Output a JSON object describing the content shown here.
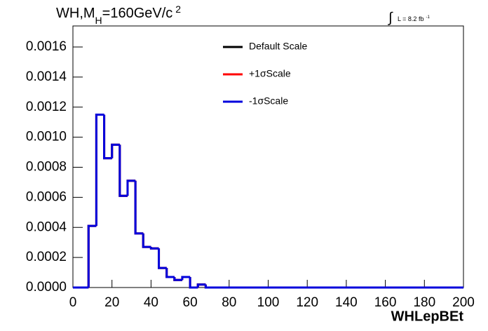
{
  "chart_data": {
    "type": "histogram",
    "title_parts": [
      "WH,M",
      "H",
      "=160GeV/c",
      "2"
    ],
    "annotation_parts": [
      "∫",
      "L = 8.2 fb",
      "-1"
    ],
    "x_label": "WHLepBEt",
    "bins": [
      0,
      4,
      8,
      12,
      16,
      20,
      24,
      28,
      32,
      36,
      40,
      44,
      48,
      52,
      56,
      60,
      64,
      68,
      72,
      76,
      80,
      84,
      88,
      92,
      96,
      100,
      104,
      108,
      112,
      116,
      120,
      124,
      128,
      132,
      136,
      140,
      144,
      148,
      152,
      156,
      160,
      164,
      168,
      172,
      176,
      180,
      184,
      188,
      192,
      196,
      200
    ],
    "series": [
      {
        "name": "Default Scale",
        "color": "#000000",
        "values": [
          0,
          0,
          0.00041,
          0.00115,
          0.00086,
          0.00095,
          0.00061,
          0.00071,
          0.00036,
          0.00027,
          0.00026,
          0.00013,
          7e-05,
          5e-05,
          7e-05,
          0,
          2e-05,
          0,
          0,
          0,
          0,
          0,
          0,
          0,
          0,
          0,
          0,
          0,
          0,
          0,
          0,
          0,
          0,
          0,
          0,
          0,
          0,
          0,
          0,
          0,
          0,
          0,
          0,
          0,
          0,
          0,
          0,
          0,
          0,
          0
        ]
      },
      {
        "name": "+1σScale",
        "color": "#ff0000",
        "values": [
          0,
          0,
          0.00041,
          0.00115,
          0.00086,
          0.00095,
          0.00061,
          0.00071,
          0.00036,
          0.00027,
          0.00026,
          0.00013,
          7e-05,
          5e-05,
          7e-05,
          0,
          2e-05,
          0,
          0,
          0,
          0,
          0,
          0,
          0,
          0,
          0,
          0,
          0,
          0,
          0,
          0,
          0,
          0,
          0,
          0,
          0,
          0,
          0,
          0,
          0,
          0,
          0,
          0,
          0,
          0,
          0,
          0,
          0,
          0,
          0
        ]
      },
      {
        "name": "-1σScale",
        "color": "#0000dd",
        "values": [
          0,
          0,
          0.00041,
          0.00115,
          0.00086,
          0.00095,
          0.00061,
          0.00071,
          0.00036,
          0.00027,
          0.00026,
          0.00013,
          7e-05,
          5e-05,
          7e-05,
          0,
          2e-05,
          0,
          0,
          0,
          0,
          0,
          0,
          0,
          0,
          0,
          0,
          0,
          0,
          0,
          0,
          0,
          0,
          0,
          0,
          0,
          0,
          0,
          0,
          0,
          0,
          0,
          0,
          0,
          0,
          0,
          0,
          0,
          0,
          0
        ]
      }
    ],
    "xlim": [
      0,
      200
    ],
    "xticks": [
      0,
      20,
      40,
      60,
      80,
      100,
      120,
      140,
      160,
      180,
      200
    ],
    "ylim": [
      0,
      0.00174
    ],
    "yticks": [
      {
        "value": 0,
        "label": "0.0000"
      },
      {
        "value": 0.0002,
        "label": "0.0002"
      },
      {
        "value": 0.0004,
        "label": "0.0004"
      },
      {
        "value": 0.0006,
        "label": "0.0006"
      },
      {
        "value": 0.0008,
        "label": "0.0008"
      },
      {
        "value": 0.001,
        "label": "0.0010"
      },
      {
        "value": 0.0012,
        "label": "0.0012"
      },
      {
        "value": 0.0014,
        "label": "0.0014"
      },
      {
        "value": 0.0016,
        "label": "0.0016"
      }
    ]
  }
}
